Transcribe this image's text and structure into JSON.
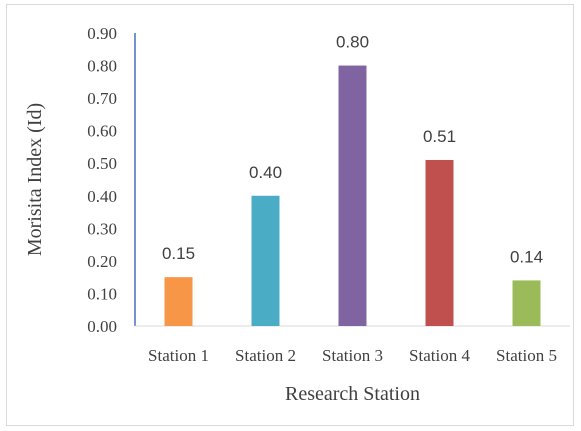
{
  "chart_data": {
    "type": "bar",
    "categories": [
      "Station 1",
      "Station 2",
      "Station 3",
      "Station 4",
      "Station 5"
    ],
    "values": [
      0.15,
      0.4,
      0.8,
      0.51,
      0.14
    ],
    "data_labels": [
      "0.15",
      "0.40",
      "0.80",
      "0.51",
      "0.14"
    ],
    "bar_colors": [
      "#F79646",
      "#4BACC6",
      "#8064A2",
      "#C0504D",
      "#9BBB59"
    ],
    "xlabel": "Research Station",
    "ylabel": "Morisita Index (Id)",
    "ylim": [
      0,
      0.9
    ],
    "yticks": [
      "0.00",
      "0.10",
      "0.20",
      "0.30",
      "0.40",
      "0.50",
      "0.60",
      "0.70",
      "0.80",
      "0.90"
    ],
    "grid": false,
    "legend": "none",
    "axis_color": "#4472C4"
  }
}
